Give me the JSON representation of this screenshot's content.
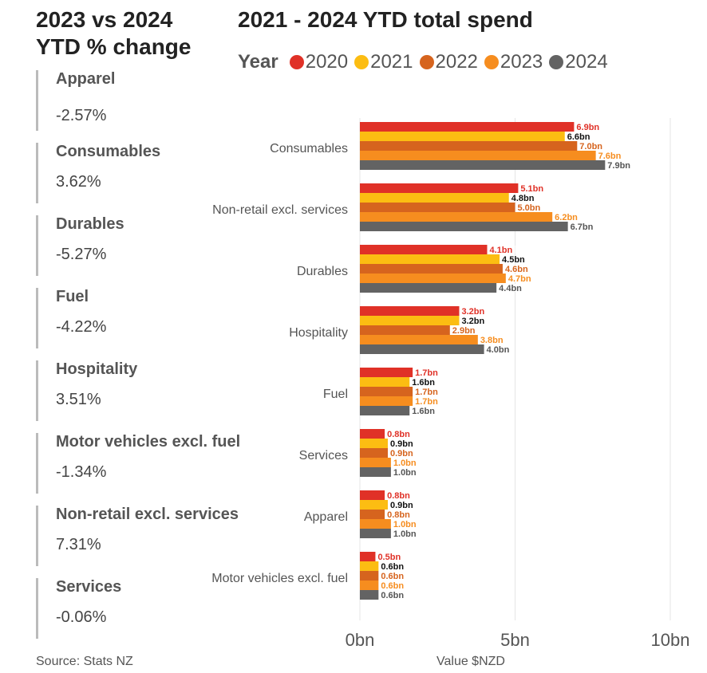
{
  "left_panel": {
    "title_line1": "2023 vs 2024",
    "title_line2": "YTD % change",
    "items": [
      {
        "label": "Apparel",
        "value": "-2.57%"
      },
      {
        "label": "Consumables",
        "value": "3.62%"
      },
      {
        "label": "Durables",
        "value": "-5.27%"
      },
      {
        "label": "Fuel",
        "value": "-4.22%"
      },
      {
        "label": "Hospitality",
        "value": "3.51%"
      },
      {
        "label": "Motor vehicles excl. fuel",
        "value": "-1.34%"
      },
      {
        "label": "Non-retail excl. services",
        "value": "7.31%"
      },
      {
        "label": "Services",
        "value": "-0.06%"
      }
    ],
    "source": "Source: Stats NZ"
  },
  "chart_data": {
    "type": "bar",
    "orientation": "horizontal",
    "title": "2021 - 2024 YTD total spend",
    "legend_title": "Year",
    "legend_position": "top",
    "xlabel": "Value $NZD",
    "xlim": [
      0,
      10
    ],
    "xticks": [
      "0bn",
      "5bn",
      "10bn"
    ],
    "grid": true,
    "categories": [
      "Consumables",
      "Non-retail excl. services",
      "Durables",
      "Hospitality",
      "Fuel",
      "Services",
      "Apparel",
      "Motor vehicles excl. fuel"
    ],
    "series": [
      {
        "name": "2020",
        "color": "#e03127",
        "label_color": "#e03127",
        "values": [
          6.9,
          5.1,
          4.1,
          3.2,
          1.7,
          0.8,
          0.8,
          0.5
        ]
      },
      {
        "name": "2021",
        "color": "#fcbd12",
        "label_color": "#111111",
        "values": [
          6.6,
          4.8,
          4.5,
          3.2,
          1.6,
          0.9,
          0.9,
          0.6
        ]
      },
      {
        "name": "2022",
        "color": "#d6641e",
        "label_color": "#d6641e",
        "values": [
          7.0,
          5.0,
          4.6,
          2.9,
          1.7,
          0.9,
          0.8,
          0.6
        ]
      },
      {
        "name": "2023",
        "color": "#f68d1f",
        "label_color": "#f68d1f",
        "values": [
          7.6,
          6.2,
          4.7,
          3.8,
          1.7,
          1.0,
          1.0,
          0.6
        ]
      },
      {
        "name": "2024",
        "color": "#636363",
        "label_color": "#555555",
        "values": [
          7.9,
          6.7,
          4.4,
          4.0,
          1.6,
          1.0,
          1.0,
          0.6
        ]
      }
    ],
    "data_label_suffix": "bn"
  }
}
